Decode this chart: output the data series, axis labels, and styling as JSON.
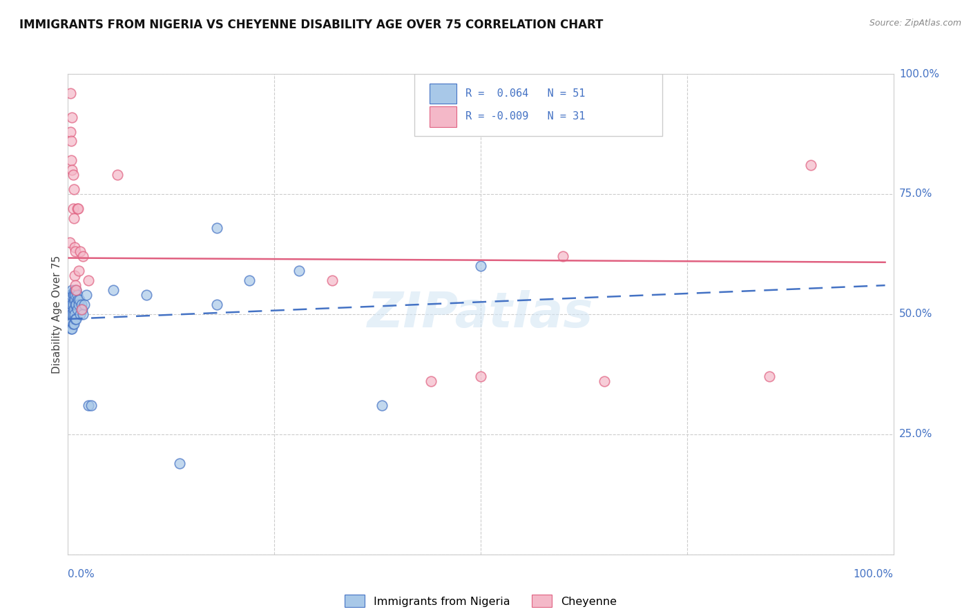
{
  "title": "IMMIGRANTS FROM NIGERIA VS CHEYENNE DISABILITY AGE OVER 75 CORRELATION CHART",
  "source": "Source: ZipAtlas.com",
  "ylabel": "Disability Age Over 75",
  "xlim": [
    0,
    1
  ],
  "ylim": [
    0,
    1
  ],
  "yticks": [
    0,
    0.25,
    0.5,
    0.75,
    1.0
  ],
  "legend_r1_text": "R =  0.064",
  "legend_n1_text": "N = 51",
  "legend_r2_text": "R = -0.009",
  "legend_n2_text": "N = 31",
  "blue_scatter_color": "#a8c8e8",
  "pink_scatter_color": "#f4b8c8",
  "blue_line_color": "#4472c4",
  "pink_line_color": "#e06080",
  "watermark": "ZIPatlas",
  "blue_points_x": [
    0.002,
    0.002,
    0.003,
    0.003,
    0.003,
    0.004,
    0.004,
    0.004,
    0.004,
    0.005,
    0.005,
    0.005,
    0.005,
    0.006,
    0.006,
    0.006,
    0.006,
    0.007,
    0.007,
    0.007,
    0.008,
    0.008,
    0.008,
    0.009,
    0.009,
    0.009,
    0.01,
    0.01,
    0.01,
    0.011,
    0.011,
    0.012,
    0.013,
    0.014,
    0.015,
    0.016,
    0.017,
    0.018,
    0.02,
    0.022,
    0.025,
    0.028,
    0.055,
    0.095,
    0.135,
    0.18,
    0.22,
    0.28,
    0.38,
    0.5,
    0.18
  ],
  "blue_points_y": [
    0.54,
    0.5,
    0.53,
    0.51,
    0.48,
    0.54,
    0.52,
    0.5,
    0.47,
    0.55,
    0.52,
    0.5,
    0.47,
    0.54,
    0.52,
    0.5,
    0.48,
    0.54,
    0.51,
    0.48,
    0.55,
    0.53,
    0.5,
    0.54,
    0.52,
    0.49,
    0.55,
    0.52,
    0.49,
    0.54,
    0.51,
    0.53,
    0.52,
    0.53,
    0.5,
    0.52,
    0.51,
    0.5,
    0.52,
    0.54,
    0.31,
    0.31,
    0.55,
    0.54,
    0.19,
    0.52,
    0.57,
    0.59,
    0.31,
    0.6,
    0.68
  ],
  "pink_points_x": [
    0.002,
    0.003,
    0.003,
    0.004,
    0.004,
    0.005,
    0.005,
    0.006,
    0.006,
    0.007,
    0.007,
    0.008,
    0.008,
    0.009,
    0.009,
    0.01,
    0.011,
    0.012,
    0.013,
    0.015,
    0.016,
    0.018,
    0.025,
    0.06,
    0.32,
    0.44,
    0.5,
    0.6,
    0.65,
    0.85,
    0.9
  ],
  "pink_points_y": [
    0.65,
    0.96,
    0.88,
    0.86,
    0.82,
    0.91,
    0.8,
    0.79,
    0.72,
    0.76,
    0.7,
    0.64,
    0.58,
    0.63,
    0.56,
    0.55,
    0.72,
    0.72,
    0.59,
    0.63,
    0.51,
    0.62,
    0.57,
    0.79,
    0.57,
    0.36,
    0.37,
    0.62,
    0.36,
    0.37,
    0.81
  ],
  "blue_trend_x": [
    0.001,
    0.99
  ],
  "blue_trend_y": [
    0.49,
    0.56
  ],
  "pink_trend_x": [
    0.001,
    0.99
  ],
  "pink_trend_y": [
    0.617,
    0.608
  ],
  "background_color": "#ffffff",
  "grid_color": "#cccccc"
}
